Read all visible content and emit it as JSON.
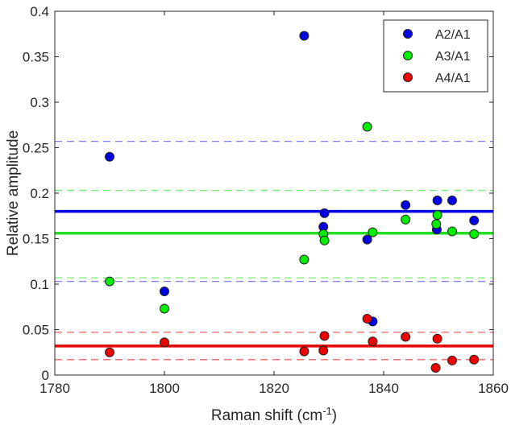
{
  "chart_data": {
    "type": "scatter",
    "xlabel_main": "Raman shift (cm",
    "xlabel_sup": "-1",
    "xlabel_end": ")",
    "ylabel": "Relative amplitude",
    "xlim": [
      1780,
      1860
    ],
    "ylim": [
      0,
      0.4
    ],
    "xticks": [
      1780,
      1800,
      1820,
      1840,
      1860
    ],
    "xtick_labels": [
      "1780",
      "1800",
      "1820",
      "1840",
      "1860"
    ],
    "yticks": [
      0,
      0.05,
      0.1,
      0.15,
      0.2,
      0.25,
      0.3,
      0.35,
      0.4
    ],
    "ytick_labels": [
      "0",
      "0.05",
      "0.1",
      "0.15",
      "0.2",
      "0.25",
      "0.3",
      "0.35",
      "0.4"
    ],
    "grid": false,
    "legend_position": "top-right",
    "series": [
      {
        "name": "A2/A1",
        "color": "#0000e0",
        "mean": 0.18,
        "bounds": [
          0.103,
          0.257
        ],
        "line_color": "#0000e8",
        "dash_color": "#8080ee",
        "points": [
          [
            1790,
            0.24
          ],
          [
            1800,
            0.092
          ],
          [
            1825.5,
            0.373
          ],
          [
            1829,
            0.163
          ],
          [
            1829.2,
            0.178
          ],
          [
            1837,
            0.149
          ],
          [
            1838,
            0.059
          ],
          [
            1844,
            0.187
          ],
          [
            1849.7,
            0.16
          ],
          [
            1849.8,
            0.192
          ],
          [
            1852.5,
            0.192
          ],
          [
            1856.5,
            0.17
          ]
        ]
      },
      {
        "name": "A3/A1",
        "color": "#00ee00",
        "mean": 0.156,
        "bounds": [
          0.107,
          0.203
        ],
        "line_color": "#22dd22",
        "dash_color": "#77ee77",
        "points": [
          [
            1790,
            0.103
          ],
          [
            1800,
            0.073
          ],
          [
            1825.5,
            0.127
          ],
          [
            1829,
            0.155
          ],
          [
            1829.2,
            0.148
          ],
          [
            1837,
            0.273
          ],
          [
            1838,
            0.157
          ],
          [
            1844,
            0.171
          ],
          [
            1849.6,
            0.166
          ],
          [
            1849.8,
            0.176
          ],
          [
            1852.5,
            0.158
          ],
          [
            1856.5,
            0.155
          ]
        ]
      },
      {
        "name": "A4/A1",
        "color": "#ee0000",
        "mean": 0.032,
        "bounds": [
          0.017,
          0.047
        ],
        "line_color": "#e80000",
        "dash_color": "#ee6666",
        "points": [
          [
            1790,
            0.025
          ],
          [
            1800,
            0.036
          ],
          [
            1825.5,
            0.026
          ],
          [
            1829,
            0.027
          ],
          [
            1829.2,
            0.043
          ],
          [
            1837,
            0.062
          ],
          [
            1838,
            0.037
          ],
          [
            1844,
            0.042
          ],
          [
            1849.5,
            0.008
          ],
          [
            1849.8,
            0.04
          ],
          [
            1852.5,
            0.016
          ],
          [
            1856.5,
            0.017
          ]
        ]
      }
    ]
  }
}
